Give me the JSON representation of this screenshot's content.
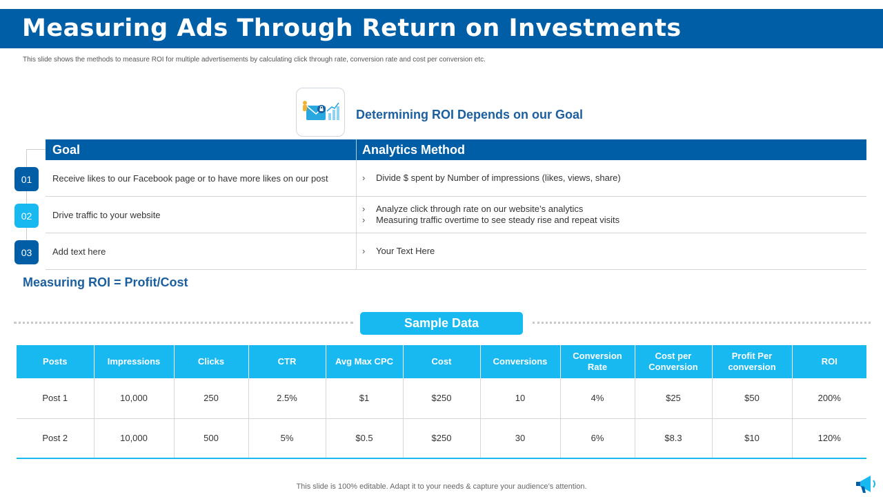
{
  "header": {
    "title": "Measuring Ads Through Return on Investments",
    "description": "This slide shows the methods to measure ROI  for multiple  advertisements by calculating click through rate, conversion rate and cost per conversion etc."
  },
  "goal_section": {
    "icon": "email-analytics-icon",
    "heading": "Determining ROI Depends on our Goal",
    "columns": [
      "Goal",
      "Analytics Method"
    ],
    "rows": [
      {
        "number": "01",
        "goal": "Receive  likes to our Facebook  page  or to have  more likes on our post",
        "methods": [
          "Divide  $ spent by  Number  of impressions (likes, views, share)"
        ]
      },
      {
        "number": "02",
        "goal": "Drive  traffic to your website",
        "methods": [
          "Analyze click through rate on our website’s analytics",
          "Measuring traffic overtime to see steady rise and repeat visits"
        ]
      },
      {
        "number": "03",
        "goal": "Add text here",
        "methods": [
          "Your Text Here"
        ]
      }
    ]
  },
  "formula": "Measuring ROI = Profit/Cost",
  "sample": {
    "label": "Sample Data",
    "columns": [
      "Posts",
      "Impressions",
      "Clicks",
      "CTR",
      "Avg Max CPC",
      "Cost",
      "Conversions",
      "Conversion Rate",
      "Cost per Conversion",
      "Profit Per conversion",
      "ROI"
    ],
    "rows": [
      [
        "Post 1",
        "10,000",
        "250",
        "2.5%",
        "$1",
        "$250",
        "10",
        "4%",
        "$25",
        "$50",
        "200%"
      ],
      [
        "Post 2",
        "10,000",
        "500",
        "5%",
        "$0.5",
        "$250",
        "30",
        "6%",
        "$8.3",
        "$10",
        "120%"
      ]
    ]
  },
  "footer": "This slide is 100% editable. Adapt it to your needs & capture your audience’s attention.",
  "colors": {
    "primary": "#005ea6",
    "accent": "#18b9f0",
    "heading": "#1b5f9e"
  }
}
